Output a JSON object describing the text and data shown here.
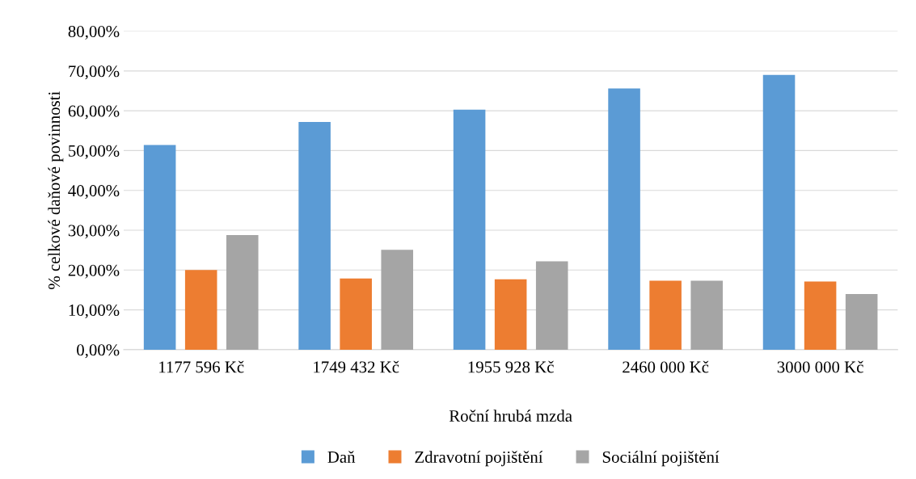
{
  "chart_data": {
    "type": "bar",
    "xlabel": "Roční hrubá mzda",
    "ylabel": "% celkové daňové povinnosti",
    "categories": [
      "1177 596 Kč",
      "1749 432 Kč",
      "1955 928 Kč",
      "2460 000 Kč",
      "3000 000 Kč"
    ],
    "series": [
      {
        "name": "Daň",
        "color": "#5b9bd5",
        "values": [
          51.4,
          57.2,
          60.3,
          65.6,
          69.0
        ]
      },
      {
        "name": "Zdravotní pojištění",
        "color": "#ed7d31",
        "values": [
          20.0,
          17.9,
          17.7,
          17.3,
          17.1
        ]
      },
      {
        "name": "Sociální pojištění",
        "color": "#a5a5a5",
        "values": [
          28.8,
          25.1,
          22.2,
          17.3,
          14.0
        ]
      }
    ],
    "ylim": [
      0,
      80
    ],
    "yticks": [
      {
        "value": 0,
        "label": "0,00%"
      },
      {
        "value": 10,
        "label": "10,00%"
      },
      {
        "value": 20,
        "label": "20,00%"
      },
      {
        "value": 30,
        "label": "30,00%"
      },
      {
        "value": 40,
        "label": "40,00%"
      },
      {
        "value": 50,
        "label": "50,00%"
      },
      {
        "value": 60,
        "label": "60,00%"
      },
      {
        "value": 70,
        "label": "70,00%"
      },
      {
        "value": 80,
        "label": "80,00%"
      }
    ],
    "grid": "y",
    "legend": "bottom"
  }
}
